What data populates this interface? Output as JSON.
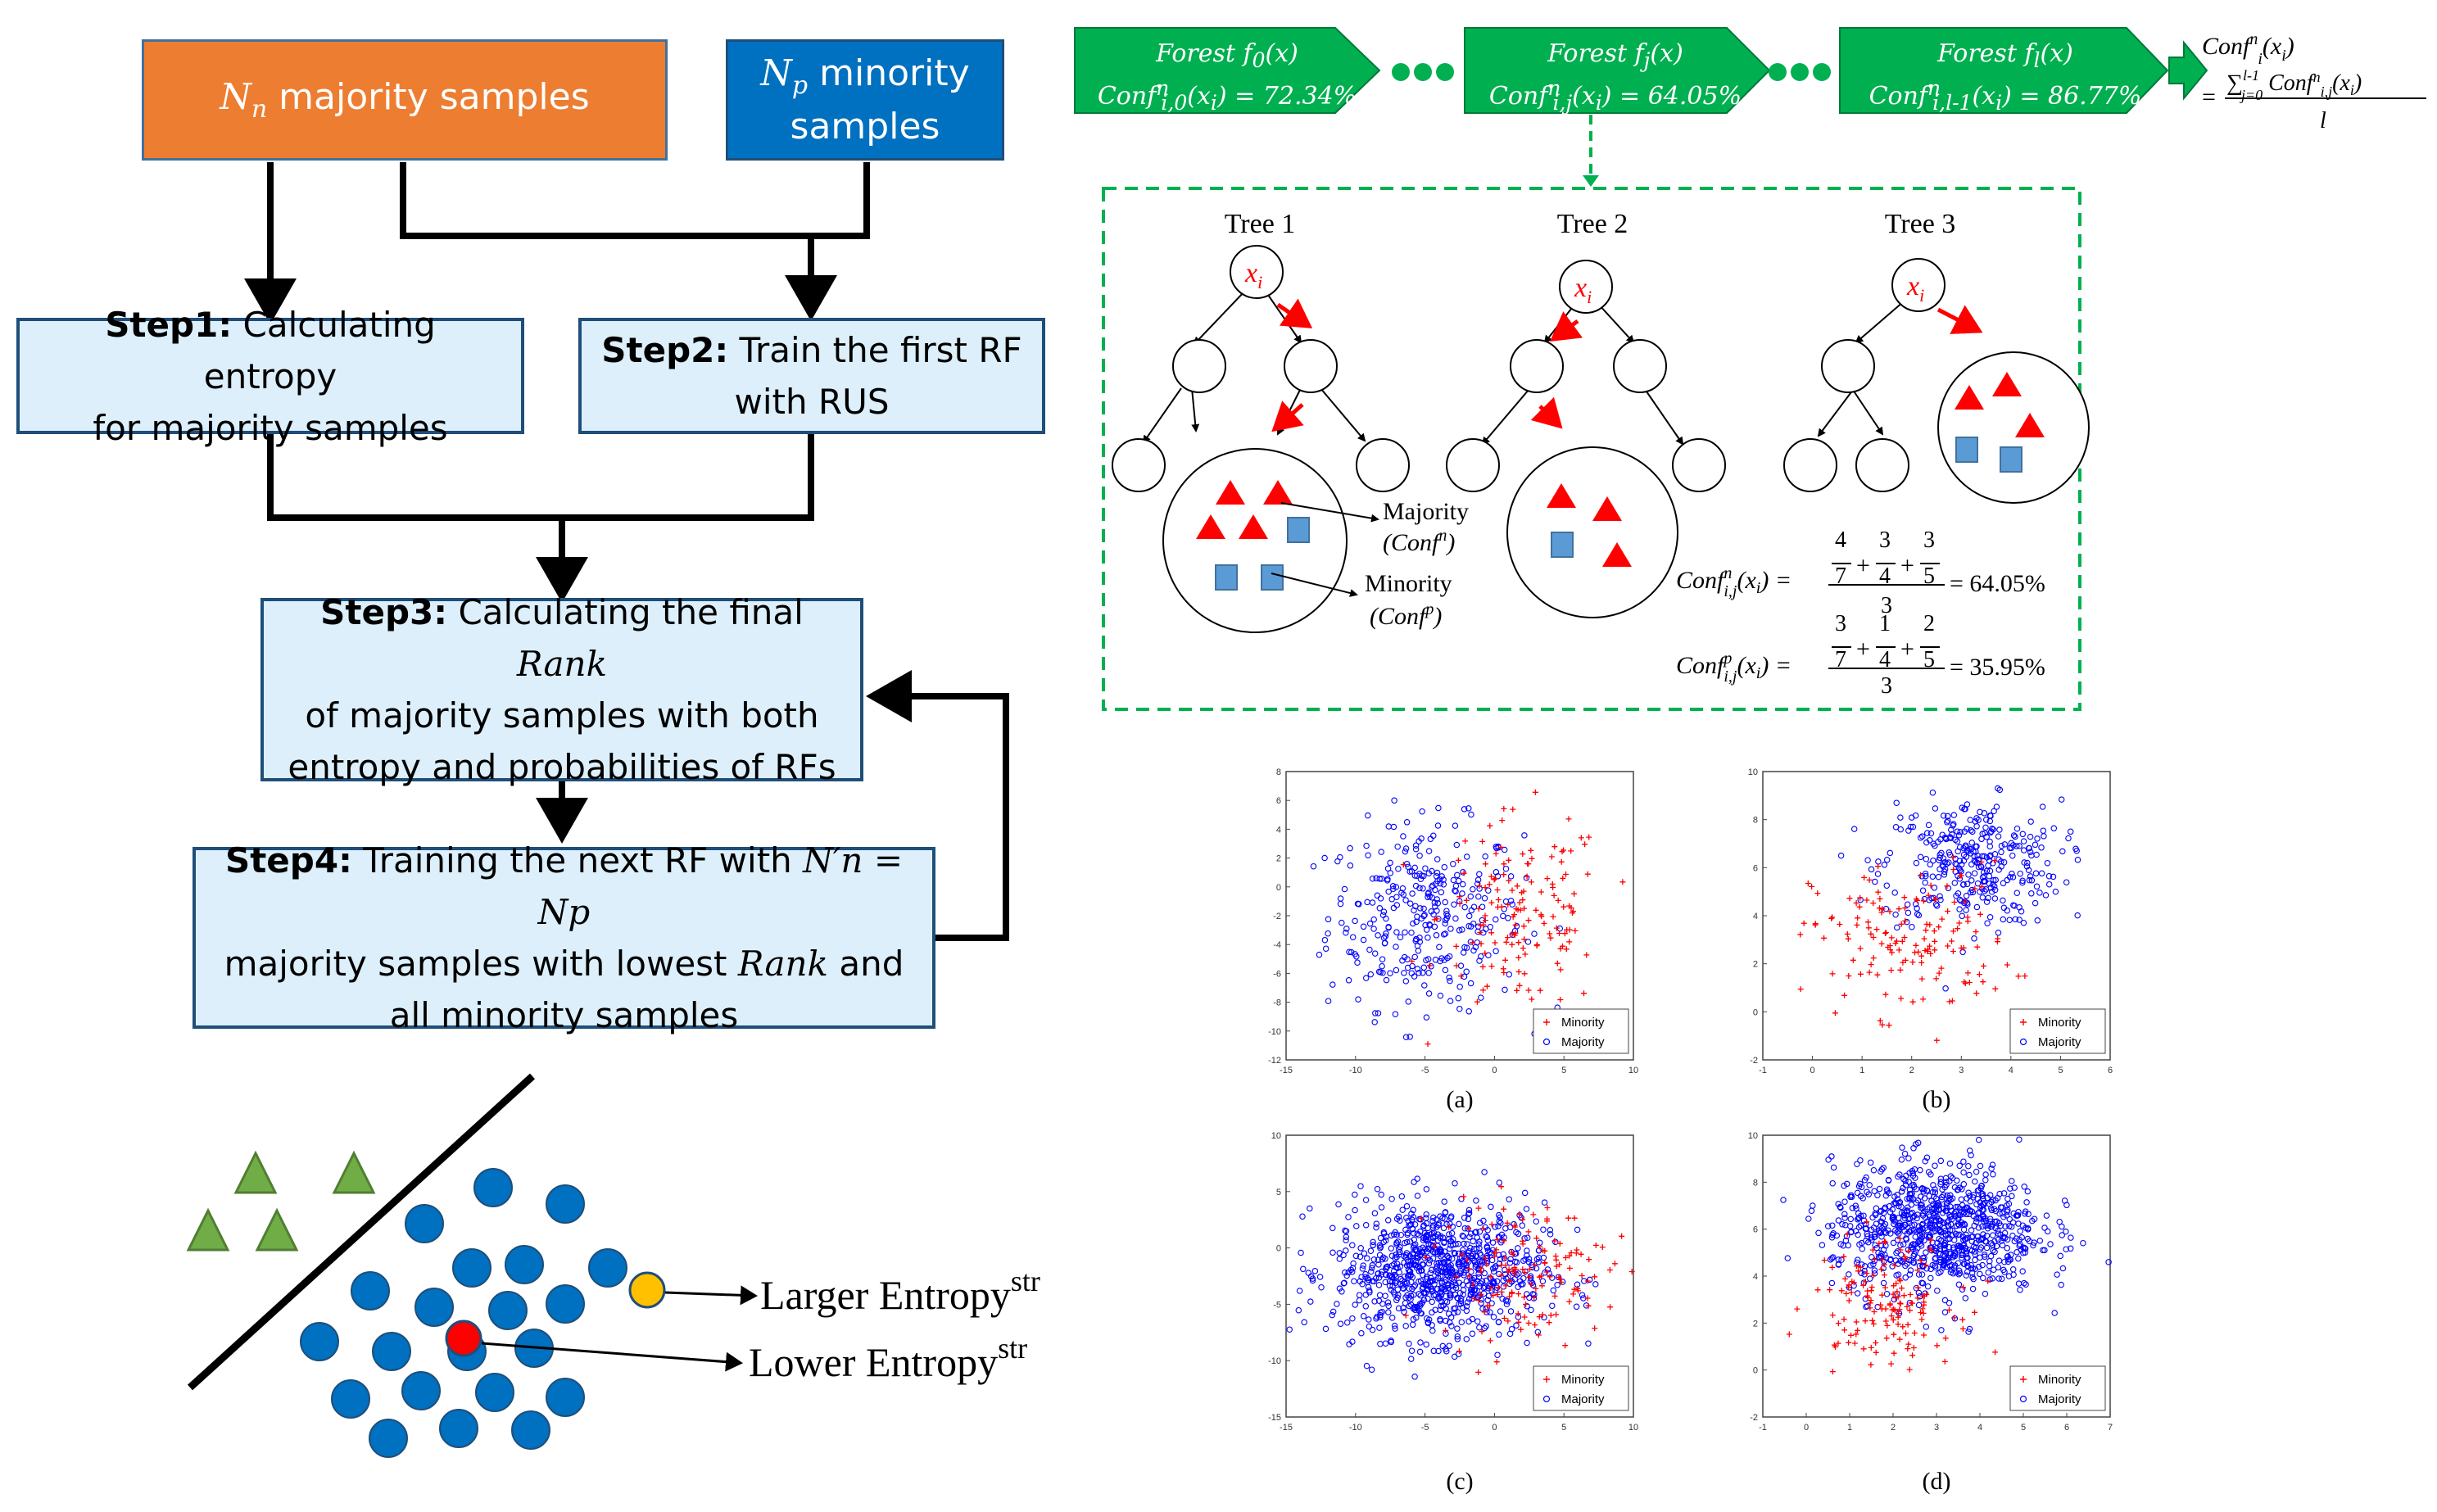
{
  "flowchart": {
    "box_majority": {
      "sym": "N",
      "sub": "n",
      "text": "majority samples"
    },
    "box_minority": {
      "sym": "N",
      "sub": "p",
      "line1_rest": "minority",
      "line2": "samples"
    },
    "step1": {
      "bold": "Step1:",
      "line1": "Calculating entropy",
      "line2": "for majority samples"
    },
    "step2": {
      "bold": "Step2:",
      "line1": "Train the first RF",
      "line2": "with RUS"
    },
    "step3": {
      "bold": "Step3:",
      "line1_a": "Calculating the final",
      "rank": "Rank",
      "line2": "of majority samples with both",
      "line3": "entropy and probabilities of RFs"
    },
    "step4": {
      "bold": "Step4:",
      "line1_a": "Training the next RF with",
      "formula": "N′n = Np",
      "line2_a": "majority samples with lowest",
      "rank": "Rank",
      "line2_b": "and",
      "line3": "all minority samples"
    }
  },
  "entropy_illustration": {
    "larger_label": "Larger Entropy",
    "lower_label": "Lower Entropy",
    "superscript": "str",
    "colors": {
      "triangle": "#70ad47",
      "circle": "#0070c0",
      "larger": "#ffc000",
      "lower": "#ff0000"
    }
  },
  "forests": [
    {
      "name": "Forest f0(x)",
      "conf": "Confni,0(xi) = 72.34%"
    },
    {
      "name": "Forest fj(x)",
      "conf": "Confni,j(xi) = 64.05%"
    },
    {
      "name": "Forest fl(x)",
      "conf": "Confni,l-1(xi) = 86.77%"
    }
  ],
  "final_formula": {
    "lhs": "Confni(xi)",
    "eq": "=",
    "numerator": "∑l-1j=0 Confni,j(xi)",
    "denominator": "l"
  },
  "trees": {
    "titles": [
      "Tree 1",
      "Tree 2",
      "Tree 3"
    ],
    "node_label": "xi",
    "majority_label": "Majority",
    "majority_conf": "(Confn)",
    "minority_label": "Minority",
    "minority_conf": "(Confp)",
    "formula_n": {
      "lhs": "Confni,j(xi) =",
      "fracs": [
        [
          "4",
          "7"
        ],
        [
          "3",
          "4"
        ],
        [
          "3",
          "5"
        ]
      ],
      "den": "3",
      "result": "= 64.05%"
    },
    "formula_p": {
      "lhs": "Confpi,j(xi) =",
      "fracs": [
        [
          "3",
          "7"
        ],
        [
          "1",
          "4"
        ],
        [
          "2",
          "5"
        ]
      ],
      "den": "3",
      "result": "= 35.95%"
    }
  },
  "chart_data": [
    {
      "type": "scatter",
      "caption": "(a)",
      "xlim": [
        -15,
        10
      ],
      "ylim": [
        -12,
        8
      ],
      "xticks": [
        -15,
        -10,
        -5,
        0,
        5,
        10
      ],
      "yticks": [
        -12,
        -10,
        -8,
        -6,
        -4,
        -2,
        0,
        2,
        4,
        6,
        8
      ],
      "legend": [
        "Minority",
        "Majority"
      ],
      "legend_position": "bottom-right",
      "majority_center": [
        -5,
        -2
      ],
      "majority_spread": [
        3.5,
        3.2
      ],
      "majority_count": 330,
      "minority_center": [
        2,
        -2
      ],
      "minority_spread": [
        3.0,
        3.5
      ],
      "minority_count": 150
    },
    {
      "type": "scatter",
      "caption": "(b)",
      "xlim": [
        -1,
        6
      ],
      "ylim": [
        -2,
        10
      ],
      "xticks": [
        -1,
        0,
        1,
        2,
        3,
        4,
        5,
        6
      ],
      "yticks": [
        -2,
        0,
        2,
        4,
        6,
        8,
        10
      ],
      "legend": [
        "Minority",
        "Majority"
      ],
      "legend_position": "bottom-right",
      "majority_center": [
        3.2,
        6.2
      ],
      "majority_spread": [
        0.9,
        1.3
      ],
      "majority_count": 330,
      "minority_center": [
        2.0,
        3.0
      ],
      "minority_spread": [
        1.0,
        1.6
      ],
      "minority_count": 150
    },
    {
      "type": "scatter",
      "caption": "(c)",
      "xlim": [
        -15,
        10
      ],
      "ylim": [
        -15,
        10
      ],
      "xticks": [
        -15,
        -10,
        -5,
        0,
        5,
        10
      ],
      "yticks": [
        -15,
        -10,
        -5,
        0,
        5,
        10
      ],
      "legend": [
        "Minority",
        "Majority"
      ],
      "legend_position": "bottom-right",
      "majority_center": [
        -4,
        -2
      ],
      "majority_spread": [
        3.8,
        3.0
      ],
      "majority_count": 900,
      "minority_center": [
        2,
        -2
      ],
      "minority_spread": [
        3.0,
        3.0
      ],
      "minority_count": 150
    },
    {
      "type": "scatter",
      "caption": "(d)",
      "xlim": [
        -1,
        7
      ],
      "ylim": [
        -2,
        10
      ],
      "xticks": [
        -1,
        0,
        1,
        2,
        3,
        4,
        5,
        6,
        7
      ],
      "yticks": [
        -2,
        0,
        2,
        4,
        6,
        8,
        10
      ],
      "legend": [
        "Minority",
        "Majority"
      ],
      "legend_position": "bottom-right",
      "majority_center": [
        3,
        6
      ],
      "majority_spread": [
        1.2,
        1.4
      ],
      "majority_count": 900,
      "minority_center": [
        1.8,
        3.0
      ],
      "minority_spread": [
        0.8,
        1.3
      ],
      "minority_count": 150
    }
  ]
}
